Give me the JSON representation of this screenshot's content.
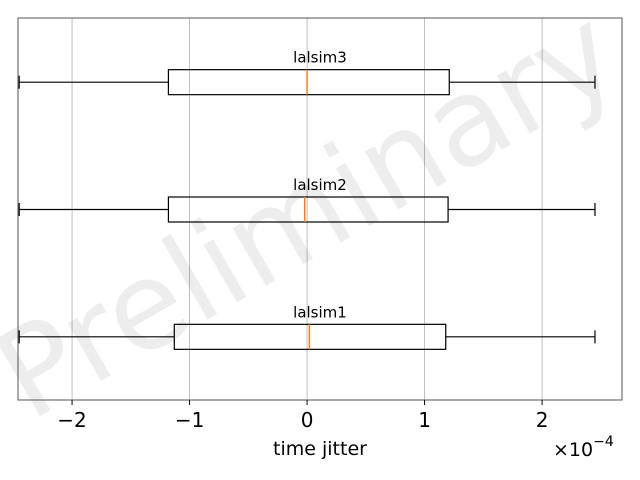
{
  "chart_data": {
    "type": "boxplot",
    "orientation": "horizontal",
    "xlabel": "time jitter",
    "x_scale_label": "×10",
    "x_scale_exponent": "−4",
    "xlim": [
      -2.46,
      2.68
    ],
    "xticks": [
      -2,
      -1,
      0,
      1,
      2
    ],
    "xtick_labels": [
      "−2",
      "−1",
      "0",
      "1",
      "2"
    ],
    "grid": "vertical",
    "watermark": "Preliminary",
    "colors": {
      "box": "#000000",
      "median": "#ff7f0e",
      "grid": "#b0b0b0",
      "frame": "#555555"
    },
    "boxes": [
      {
        "label": "lalsim1",
        "whisker_low": -2.45,
        "q1": -1.13,
        "median": 0.02,
        "q3": 1.18,
        "whisker_high": 2.45
      },
      {
        "label": "lalsim2",
        "whisker_low": -2.45,
        "q1": -1.18,
        "median": -0.02,
        "q3": 1.2,
        "whisker_high": 2.45
      },
      {
        "label": "lalsim3",
        "whisker_low": -2.45,
        "q1": -1.18,
        "median": 0.0,
        "q3": 1.21,
        "whisker_high": 2.45
      }
    ]
  }
}
